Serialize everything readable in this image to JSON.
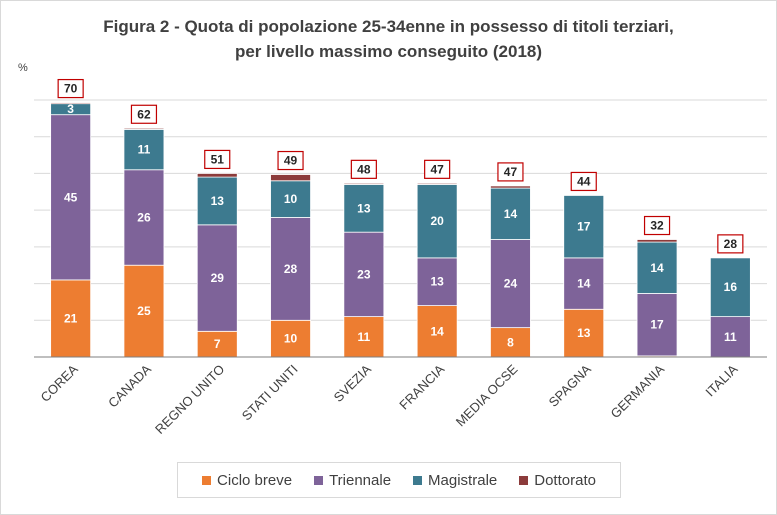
{
  "chart_data": {
    "type": "bar",
    "stacked": true,
    "title_line1": "Figura 2 - Quota di popolazione 25-34enne in possesso di titoli terziari,",
    "title_line2": "per livello massimo conseguito (2018)",
    "ylabel": "%",
    "ylim": [
      0,
      70
    ],
    "grid": true,
    "legend_position": "bottom",
    "categories": [
      "COREA",
      "CANADA",
      "REGNO UNITO",
      "STATI UNITI",
      "SVEZIA",
      "FRANCIA",
      "MEDIA OCSE",
      "SPAGNA",
      "GERMANIA",
      "ITALIA"
    ],
    "series": [
      {
        "name": "Ciclo breve",
        "color": "#ed7d31",
        "values": [
          21,
          25,
          7,
          10,
          11,
          14,
          8,
          13,
          0.3,
          0
        ],
        "labels": [
          "21",
          "25",
          "7",
          "10",
          "11",
          "14",
          "8",
          "13",
          "",
          ""
        ]
      },
      {
        "name": "Triennale",
        "color": "#7e6399",
        "values": [
          45,
          26,
          29,
          28,
          23,
          13,
          24,
          14,
          17,
          11
        ],
        "labels": [
          "45",
          "26",
          "29",
          "28",
          "23",
          "13",
          "24",
          "14",
          "17",
          "11"
        ]
      },
      {
        "name": "Magistrale",
        "color": "#3d7a8f",
        "values": [
          3,
          11,
          13,
          10,
          13,
          20,
          14,
          17,
          14,
          16
        ],
        "labels": [
          "3",
          "11",
          "13",
          "10",
          "13",
          "20",
          "14",
          "17",
          "14",
          "16"
        ]
      },
      {
        "name": "Dottorato",
        "color": "#8c3b3b",
        "values": [
          0.3,
          0.3,
          1,
          1.7,
          0.3,
          0.3,
          0.6,
          0,
          0.7,
          0
        ],
        "labels": [
          "",
          "",
          "",
          "",
          "",
          "",
          "",
          "",
          "",
          ""
        ]
      }
    ],
    "totals": [
      "70",
      "62",
      "51",
      "49",
      "48",
      "47",
      "47",
      "44",
      "32",
      "28"
    ]
  }
}
